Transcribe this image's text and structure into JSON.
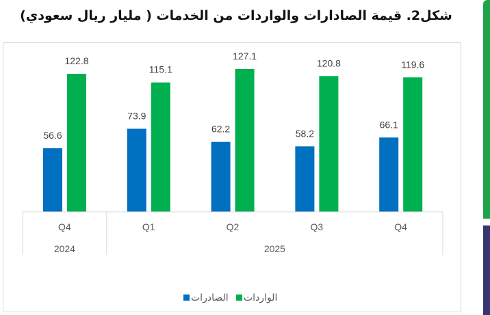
{
  "chart_data": {
    "type": "bar",
    "title": "شكل2. قيمة الصادارات والواردات من الخدمات ( مليار ريال سعودي)",
    "categories": [
      "Q4",
      "Q1",
      "Q2",
      "Q3",
      "Q4"
    ],
    "groups": [
      {
        "label": "2024",
        "span": 1
      },
      {
        "label": "2025",
        "span": 4
      }
    ],
    "series": [
      {
        "name": "الصادرات",
        "color": "#0070c0",
        "values": [
          56.6,
          73.9,
          62.2,
          58.2,
          66.1
        ]
      },
      {
        "name": "الواردات",
        "color": "#00b050",
        "values": [
          122.8,
          115.1,
          127.1,
          120.8,
          119.6
        ]
      }
    ],
    "ylim": [
      0,
      140
    ],
    "legend": "bottom",
    "grid": false
  }
}
